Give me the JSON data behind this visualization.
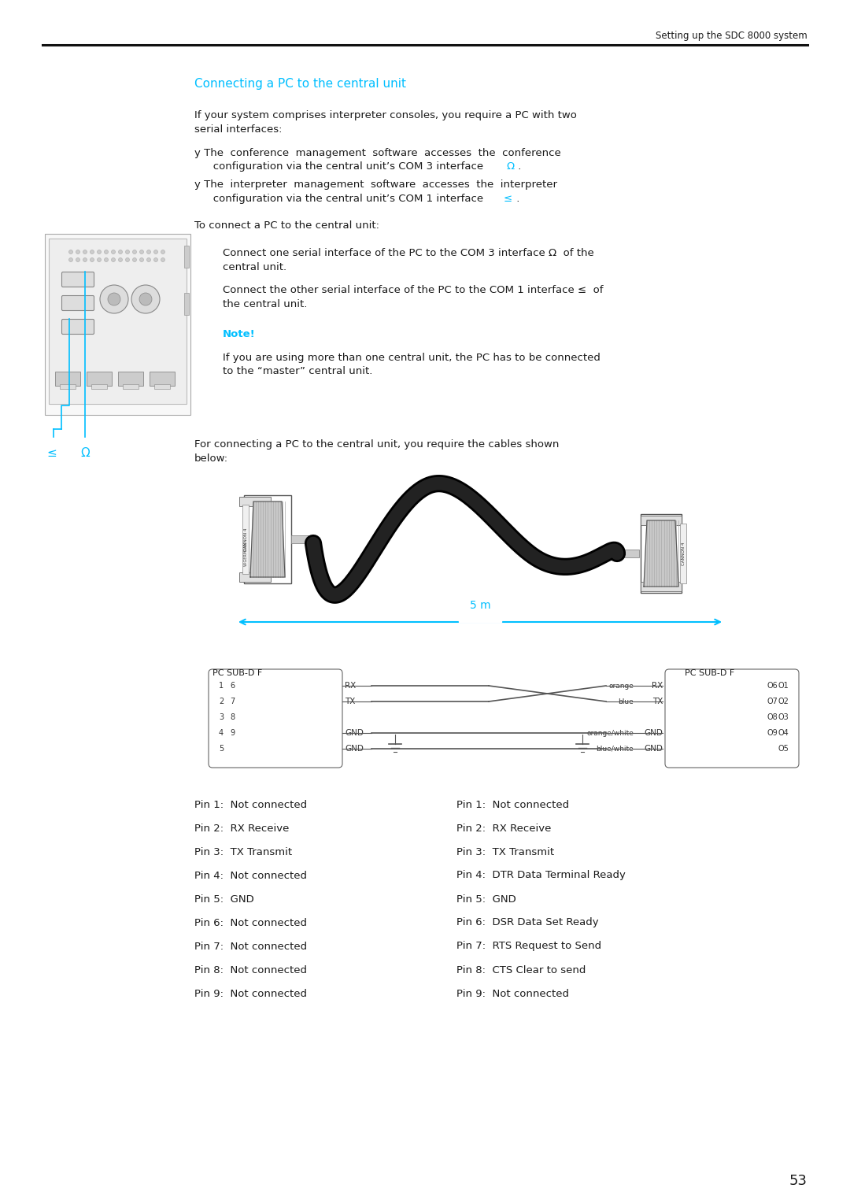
{
  "page_header": "Setting up the SDC 8000 system",
  "section_title": "Connecting a PC to the central unit",
  "section_title_color": "#00BFFF",
  "header_line_color": "#1a1a1a",
  "body_text_color": "#1a1a1a",
  "cyan_color": "#00BFFF",
  "bg_color": "#ffffff",
  "page_number": "53",
  "left_pin_list": [
    "Pin 1:  Not connected",
    "Pin 2:  RX Receive",
    "Pin 3:  TX Transmit",
    "Pin 4:  Not connected",
    "Pin 5:  GND",
    "Pin 6:  Not connected",
    "Pin 7:  Not connected",
    "Pin 8:  Not connected",
    "Pin 9:  Not connected"
  ],
  "right_pin_list": [
    "Pin 1:  Not connected",
    "Pin 2:  RX Receive",
    "Pin 3:  TX Transmit",
    "Pin 4:  DTR Data Terminal Ready",
    "Pin 5:  GND",
    "Pin 6:  DSR Data Set Ready",
    "Pin 7:  RTS Request to Send",
    "Pin 8:  CTS Clear to send",
    "Pin 9:  Not connected"
  ]
}
